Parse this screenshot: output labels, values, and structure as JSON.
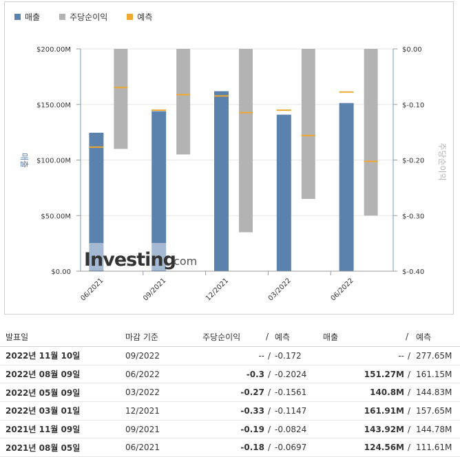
{
  "legend": {
    "revenue": "매출",
    "eps": "주당순이익",
    "forecast": "예측"
  },
  "colors": {
    "revenue_bar": "#5b81ad",
    "eps_bar": "#b3b3b3",
    "forecast_mark": "#f0a830",
    "positive": "#1f8ad6",
    "negative": "#e02020"
  },
  "watermark": "Investing.com",
  "chart_data": {
    "type": "bar",
    "categories": [
      "06/2021",
      "09/2021",
      "12/2021",
      "03/2022",
      "06/2022"
    ],
    "series": [
      {
        "name": "매출",
        "axis": "left",
        "values": [
          124.56,
          143.92,
          161.91,
          140.8,
          151.27
        ],
        "forecast": [
          111.61,
          144.78,
          157.65,
          144.83,
          161.15
        ]
      },
      {
        "name": "주당순이익",
        "axis": "right",
        "values": [
          -0.18,
          -0.19,
          -0.33,
          -0.27,
          -0.3
        ],
        "forecast": [
          -0.0697,
          -0.0824,
          -0.1147,
          -0.1561,
          -0.2024
        ]
      }
    ],
    "ylabel_left": "매출",
    "ylabel_right": "주당순이익",
    "ylim_left": [
      0,
      200
    ],
    "ylim_right": [
      -0.4,
      0
    ],
    "left_ticks": [
      "$0.00",
      "$50.00M",
      "$100.00M",
      "$150.00M",
      "$200.00M"
    ],
    "right_ticks": [
      "$-0.40",
      "$-0.30",
      "$-0.20",
      "$-0.10",
      "$0.00"
    ],
    "grid": true,
    "legend_position": "top-left"
  },
  "table": {
    "headers": {
      "date": "발표일",
      "period": "마감 기준",
      "eps": "주당순이익",
      "slash": "/",
      "eps_forecast": "예측",
      "revenue": "매출",
      "revenue_forecast": "예측"
    },
    "rows": [
      {
        "date": "2022년 11월 10일",
        "period": "09/2022",
        "eps": "--",
        "eps_forecast": "-0.172",
        "revenue": "--",
        "revenue_forecast": "277.65M",
        "eps_status": "neutral",
        "rev_status": "neutral"
      },
      {
        "date": "2022년 08월 09일",
        "period": "06/2022",
        "eps": "-0.3",
        "eps_forecast": "-0.2024",
        "revenue": "151.27M",
        "revenue_forecast": "161.15M",
        "eps_status": "blue",
        "rev_status": "blue"
      },
      {
        "date": "2022년 05월 09일",
        "period": "03/2022",
        "eps": "-0.27",
        "eps_forecast": "-0.1561",
        "revenue": "140.8M",
        "revenue_forecast": "144.83M",
        "eps_status": "blue",
        "rev_status": "blue"
      },
      {
        "date": "2022년 03월 01일",
        "period": "12/2021",
        "eps": "-0.33",
        "eps_forecast": "-0.1147",
        "revenue": "161.91M",
        "revenue_forecast": "157.65M",
        "eps_status": "blue",
        "rev_status": "red"
      },
      {
        "date": "2021년 11월 09일",
        "period": "09/2021",
        "eps": "-0.19",
        "eps_forecast": "-0.0824",
        "revenue": "143.92M",
        "revenue_forecast": "144.78M",
        "eps_status": "blue",
        "rev_status": "blue"
      },
      {
        "date": "2021년 08월 05일",
        "period": "06/2021",
        "eps": "-0.18",
        "eps_forecast": "-0.0697",
        "revenue": "124.56M",
        "revenue_forecast": "111.61M",
        "eps_status": "blue",
        "rev_status": "red"
      }
    ]
  }
}
